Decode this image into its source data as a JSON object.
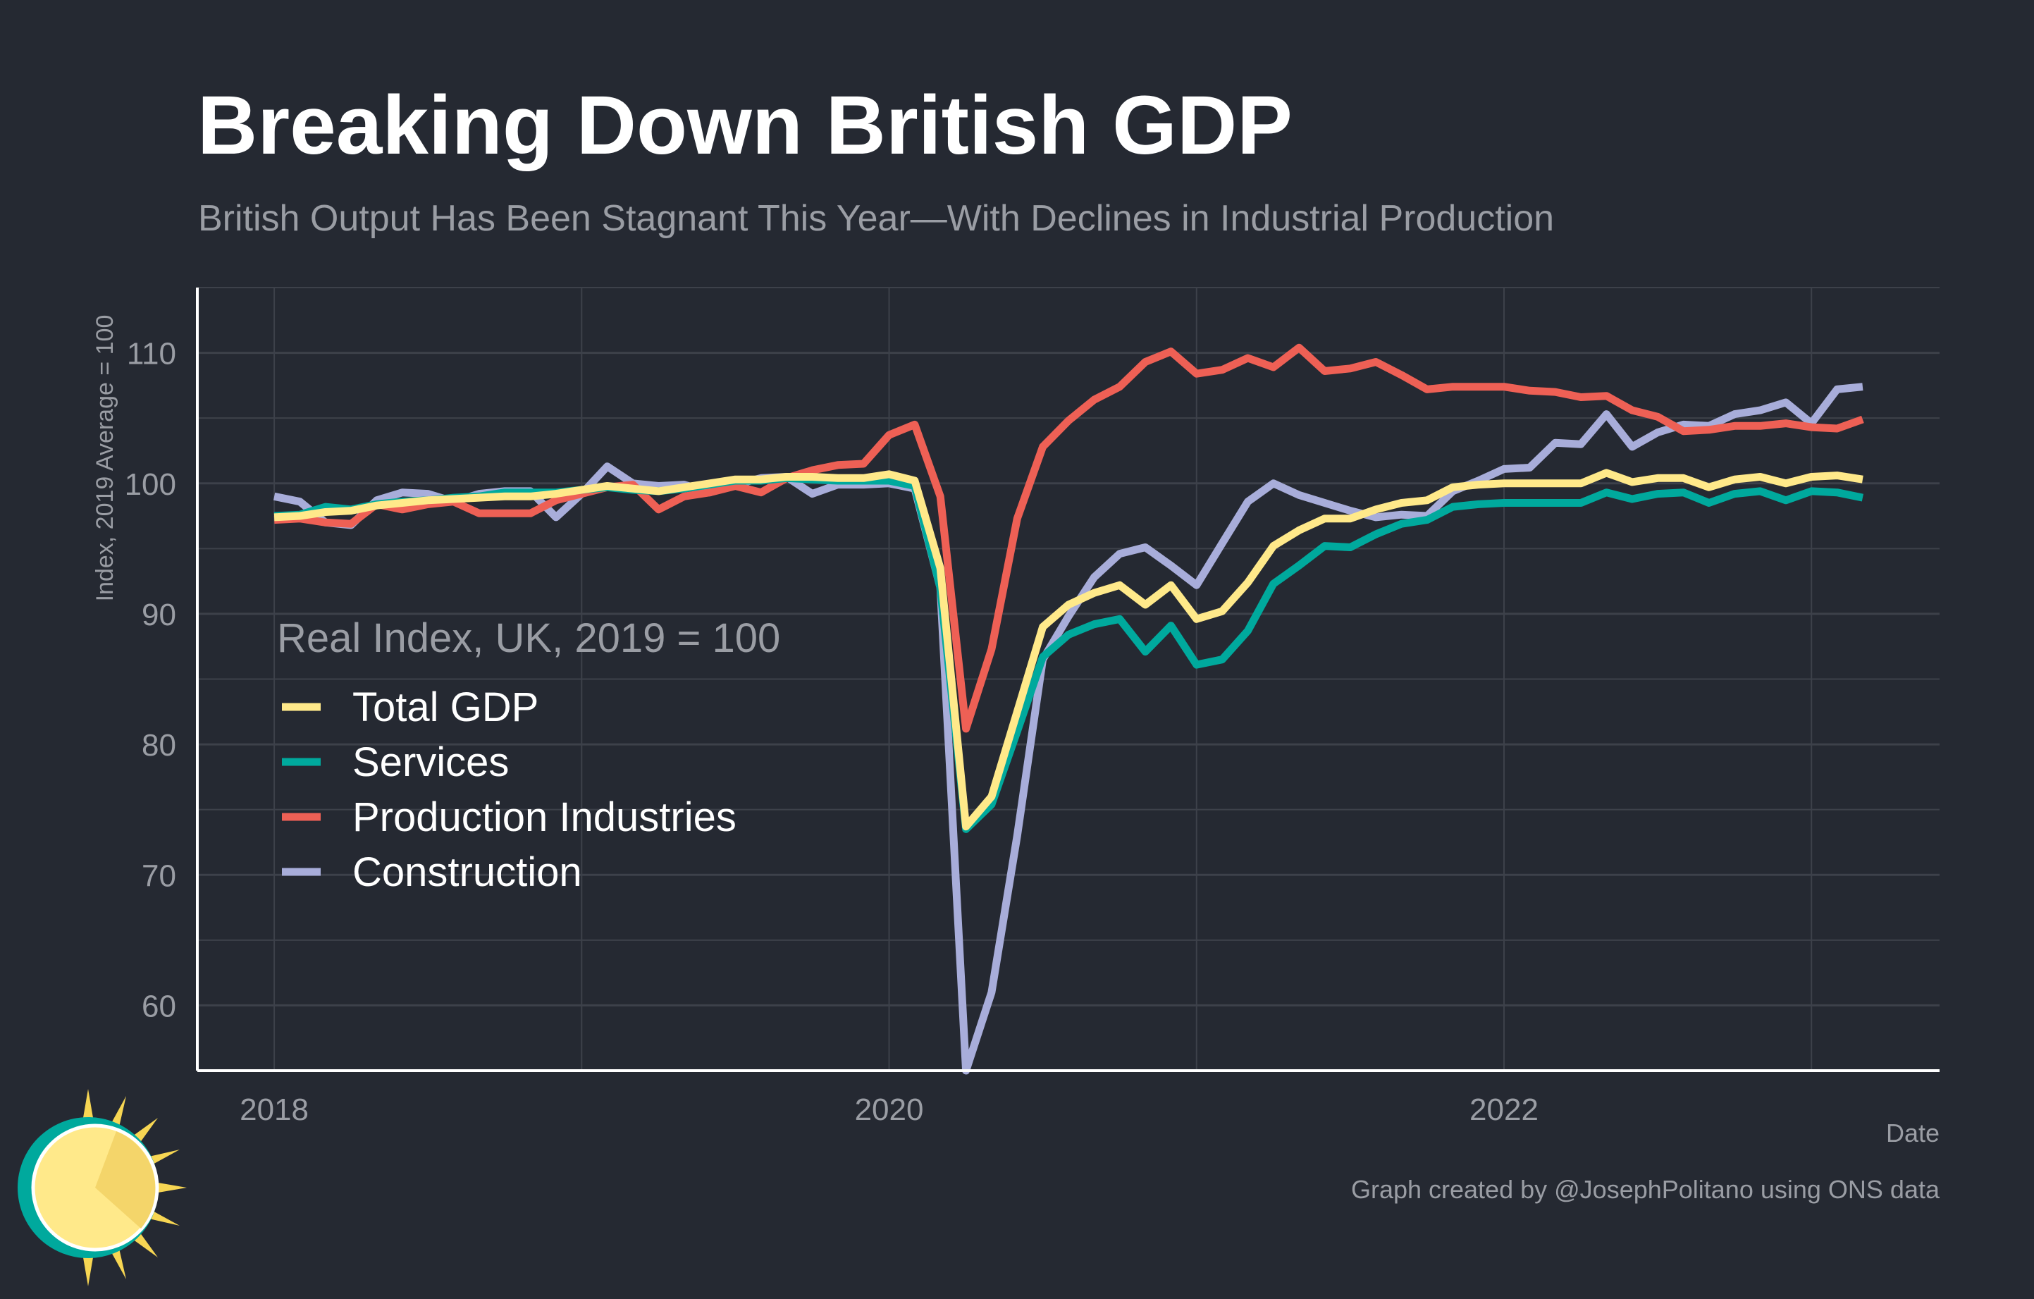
{
  "colors": {
    "background": "#252932",
    "grid": "#3d414a",
    "axis": "#ffffff",
    "muted": "#9a9da4"
  },
  "chart_data": {
    "type": "line",
    "title": "Breaking Down British GDP",
    "subtitle": "British Output Has Been Stagnant This Year—With Declines in Industrial Production",
    "xlabel": "Date",
    "ylabel": "Index, 2019 Average = 100",
    "legend_title": "Real Index, UK, 2019 = 100",
    "legend_placement": "center-left",
    "caption": "Graph created by @JosephPolitano using ONS data",
    "xlim": [
      "2017-10",
      "2023-06"
    ],
    "ylim": [
      55,
      115
    ],
    "x_ticks": [
      "2018",
      "2020",
      "2022"
    ],
    "y_ticks": [
      60,
      70,
      80,
      90,
      100,
      110
    ],
    "grid": true,
    "x_start": "2018-01",
    "x_frequency": "monthly",
    "series": [
      {
        "name": "Total GDP",
        "color": "#FFE98A",
        "values": [
          97.4,
          97.5,
          97.8,
          97.9,
          98.3,
          98.5,
          98.7,
          98.8,
          98.9,
          99.0,
          99.0,
          99.2,
          99.5,
          99.8,
          99.6,
          99.4,
          99.7,
          100.0,
          100.3,
          100.3,
          100.5,
          100.5,
          100.4,
          100.4,
          100.7,
          100.2,
          93.5,
          73.7,
          76.0,
          82.5,
          89.0,
          90.7,
          91.6,
          92.2,
          90.7,
          92.2,
          89.6,
          90.2,
          92.4,
          95.2,
          96.4,
          97.3,
          97.3,
          98.0,
          98.5,
          98.7,
          99.7,
          99.9,
          100.0,
          100.0,
          100.0,
          100.0,
          100.8,
          100.1,
          100.4,
          100.4,
          99.7,
          100.3,
          100.5,
          100.0,
          100.5,
          100.6,
          100.3
        ]
      },
      {
        "name": "Services",
        "color": "#00A99D",
        "values": [
          97.5,
          97.6,
          98.2,
          98.0,
          98.4,
          98.6,
          98.7,
          98.9,
          99.0,
          99.3,
          99.3,
          99.3,
          99.5,
          99.7,
          99.5,
          99.4,
          99.6,
          99.9,
          100.2,
          100.2,
          100.4,
          100.3,
          100.2,
          100.2,
          100.2,
          99.8,
          92.0,
          73.5,
          75.4,
          81.0,
          86.7,
          88.4,
          89.2,
          89.6,
          87.1,
          89.1,
          86.1,
          86.5,
          88.7,
          92.3,
          93.7,
          95.2,
          95.1,
          96.1,
          96.9,
          97.2,
          98.2,
          98.4,
          98.5,
          98.5,
          98.5,
          98.5,
          99.3,
          98.8,
          99.2,
          99.3,
          98.5,
          99.2,
          99.4,
          98.7,
          99.4,
          99.3,
          98.9
        ]
      },
      {
        "name": "Production Industries",
        "color": "#EE6055",
        "values": [
          97.2,
          97.3,
          97.0,
          96.9,
          98.4,
          98.0,
          98.4,
          98.6,
          97.7,
          97.7,
          97.7,
          98.7,
          99.2,
          99.7,
          99.9,
          98.0,
          99.0,
          99.3,
          99.8,
          99.3,
          100.4,
          101.0,
          101.4,
          101.5,
          103.7,
          104.5,
          99.0,
          81.2,
          87.3,
          97.3,
          102.8,
          104.8,
          106.4,
          107.4,
          109.3,
          110.1,
          108.4,
          108.7,
          109.6,
          108.9,
          110.4,
          108.6,
          108.8,
          109.3,
          108.3,
          107.2,
          107.4,
          107.4,
          107.4,
          107.1,
          107.0,
          106.6,
          106.7,
          105.6,
          105.1,
          104.0,
          104.1,
          104.4,
          104.4,
          104.6,
          104.3,
          104.2,
          104.9
        ]
      },
      {
        "name": "Construction",
        "color": "#A8ADDA",
        "values": [
          99.0,
          98.6,
          97.0,
          96.8,
          98.7,
          99.3,
          99.2,
          98.6,
          99.2,
          99.4,
          99.4,
          97.4,
          99.2,
          101.3,
          100.0,
          99.8,
          99.9,
          99.3,
          99.9,
          100.4,
          100.5,
          99.2,
          99.9,
          99.9,
          100.0,
          99.6,
          92.0,
          55.0,
          61.0,
          73.0,
          86.5,
          89.8,
          92.8,
          94.6,
          95.1,
          93.7,
          92.2,
          95.4,
          98.6,
          100.0,
          99.1,
          98.5,
          97.9,
          97.4,
          97.6,
          97.5,
          99.4,
          100.2,
          101.1,
          101.2,
          103.1,
          103.0,
          105.3,
          102.8,
          103.9,
          104.5,
          104.4,
          105.3,
          105.6,
          106.2,
          104.6,
          107.2,
          107.4
        ]
      }
    ]
  }
}
